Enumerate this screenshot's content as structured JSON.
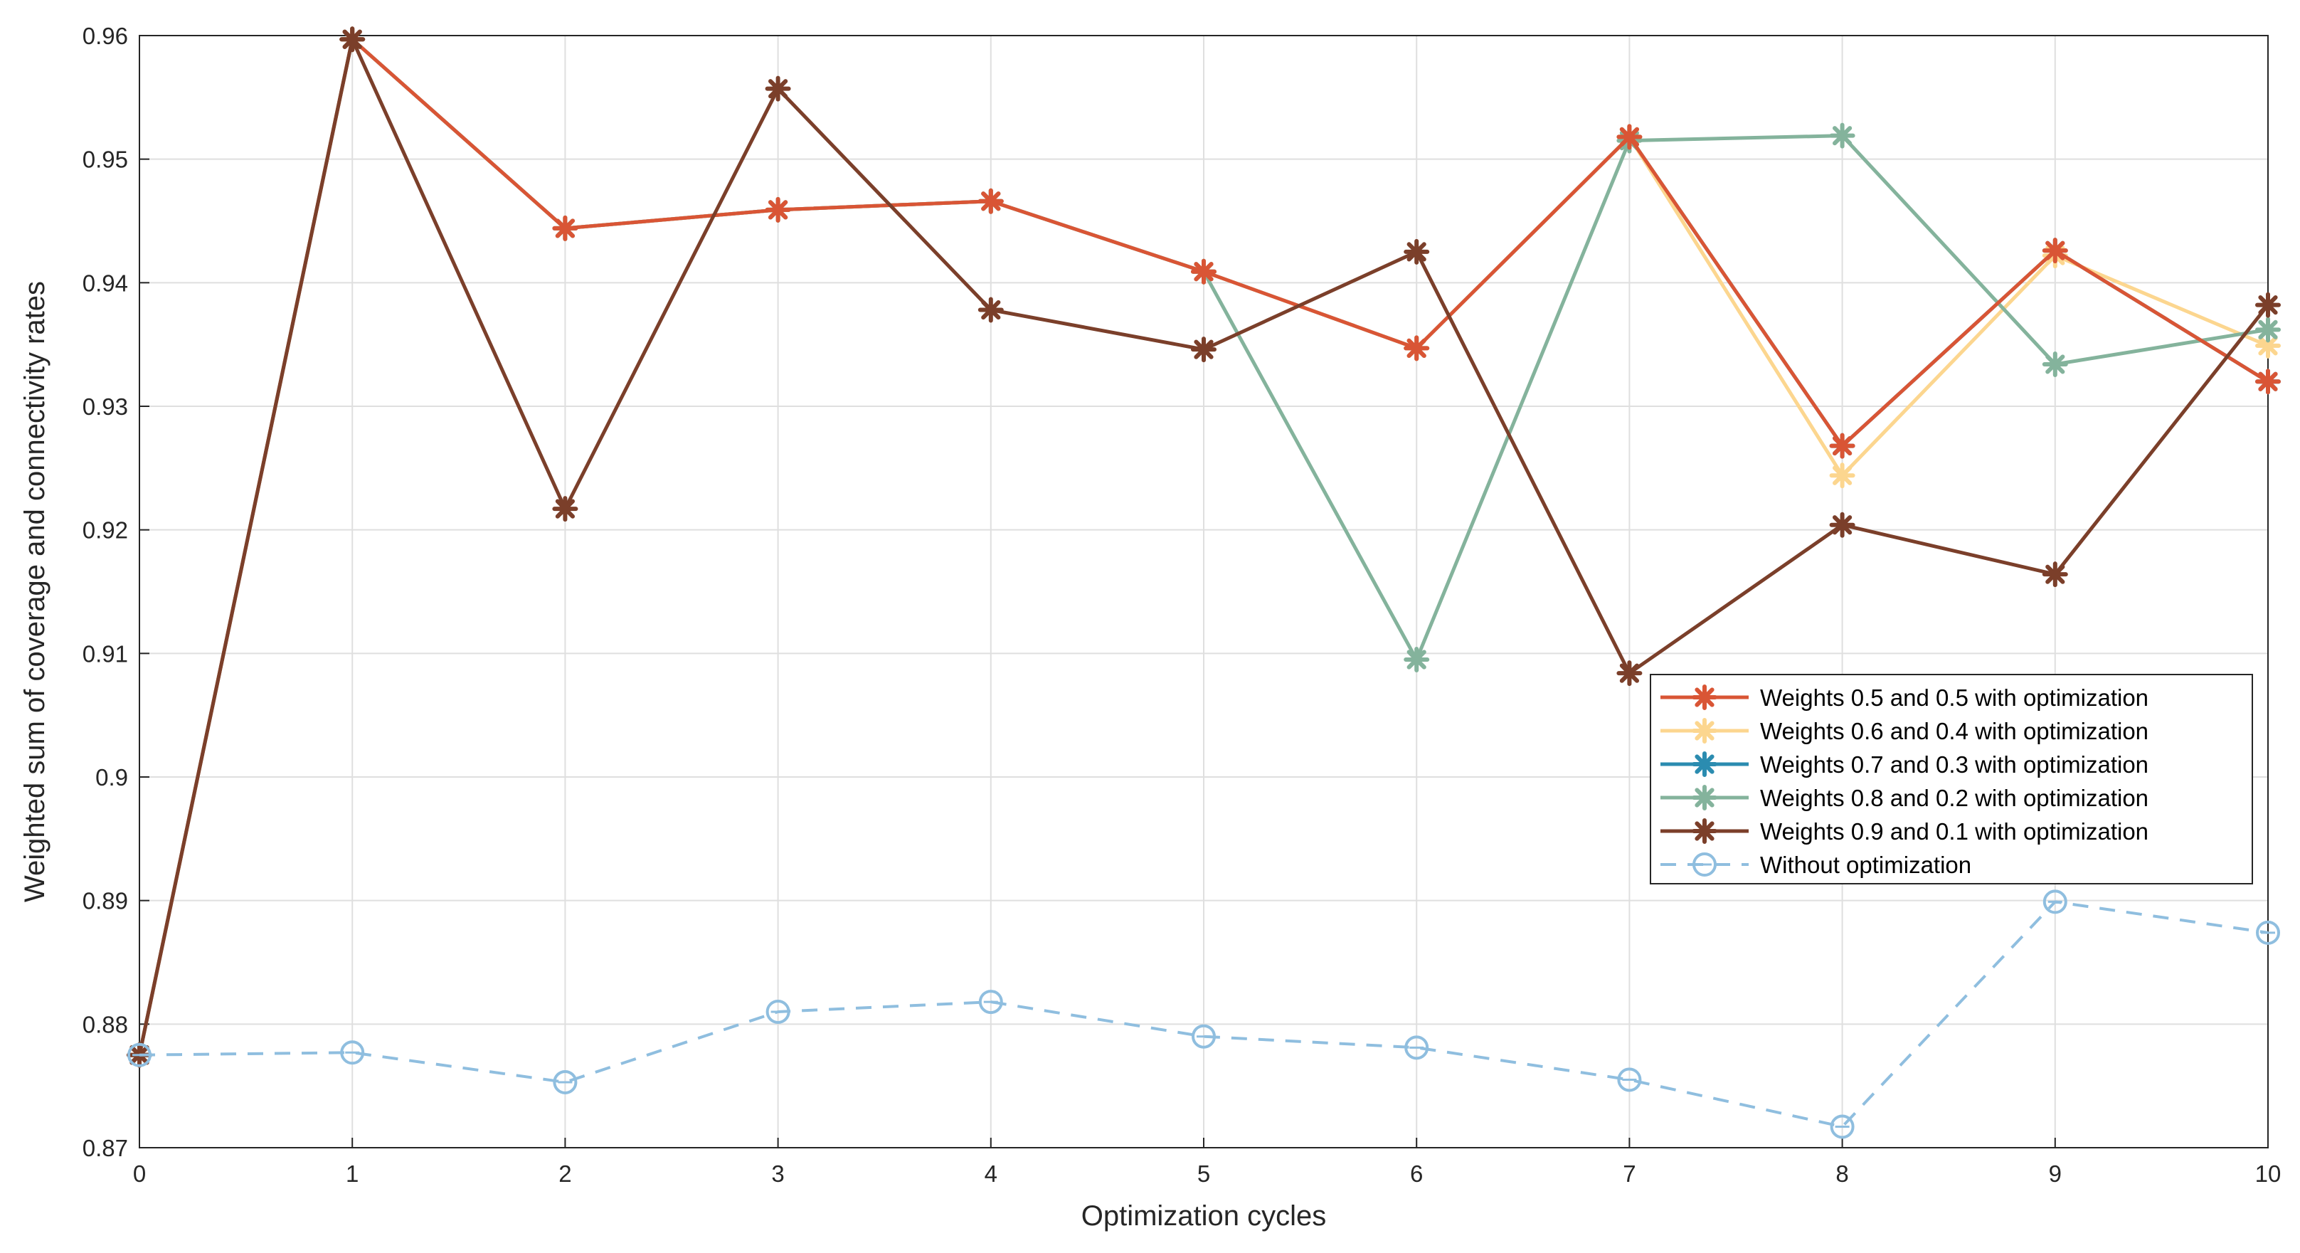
{
  "chart_data": {
    "type": "line",
    "title": "",
    "xlabel": "Optimization cycles",
    "ylabel": "Weighted sum of coverage and connectivity rates",
    "x": [
      0,
      1,
      2,
      3,
      4,
      5,
      6,
      7,
      8,
      9,
      10
    ],
    "xlim": [
      0,
      10
    ],
    "ylim": [
      0.87,
      0.96
    ],
    "xticks": [
      "0",
      "1",
      "2",
      "3",
      "4",
      "5",
      "6",
      "7",
      "8",
      "9",
      "10"
    ],
    "yticks": [
      "0.87",
      "0.88",
      "0.89",
      "0.9",
      "0.91",
      "0.92",
      "0.93",
      "0.94",
      "0.95",
      "0.96"
    ],
    "grid": true,
    "legend_position": "lower-right",
    "series": [
      {
        "name": "Weights 0.7 and 0.3 with optimization",
        "color": "#2b8cb0",
        "marker": "star",
        "dashed": false,
        "values": [
          0.8775,
          0.9597,
          0.9444,
          0.9459,
          0.9466,
          0.9409,
          0.9347,
          0.9518,
          0.9268,
          0.9426,
          0.932
        ]
      },
      {
        "name": "Weights 0.6 and 0.4 with optimization",
        "color": "#fcd68f",
        "marker": "star",
        "dashed": false,
        "values": [
          0.8775,
          0.9597,
          0.9444,
          0.9459,
          0.9466,
          0.9409,
          0.9347,
          0.9518,
          0.9244,
          0.9422,
          0.9349
        ]
      },
      {
        "name": "Weights 0.8 and 0.2 with optimization",
        "color": "#84b39c",
        "marker": "star",
        "dashed": false,
        "values": [
          0.8775,
          0.9597,
          0.9444,
          0.9459,
          0.9466,
          0.9409,
          0.9095,
          0.9515,
          0.9519,
          0.9334,
          0.9362
        ]
      },
      {
        "name": "Weights 0.5 and 0.5 with optimization",
        "color": "#d95535",
        "marker": "star",
        "dashed": false,
        "values": [
          0.8775,
          0.9597,
          0.9444,
          0.9459,
          0.9466,
          0.9409,
          0.9347,
          0.9518,
          0.9268,
          0.9426,
          0.932
        ]
      },
      {
        "name": "Weights 0.9 and 0.1 with optimization",
        "color": "#7b3f2a",
        "marker": "star",
        "dashed": false,
        "values": [
          0.8775,
          0.9597,
          0.9217,
          0.9557,
          0.9378,
          0.9346,
          0.9425,
          0.9084,
          0.9204,
          0.9164,
          0.9382
        ]
      },
      {
        "name": "Without optimization",
        "color": "#8fbedf",
        "marker": "circle",
        "dashed": true,
        "values": [
          0.8775,
          0.8777,
          0.8753,
          0.881,
          0.8818,
          0.879,
          0.8781,
          0.8755,
          0.8717,
          0.8899,
          0.8874
        ]
      }
    ],
    "legend_order": [
      "Weights 0.5 and 0.5 with optimization",
      "Weights 0.6 and 0.4 with optimization",
      "Weights 0.7 and 0.3 with optimization",
      "Weights 0.8 and 0.2 with optimization",
      "Weights 0.9 and 0.1 with optimization",
      "Without optimization"
    ]
  },
  "colors": {
    "grid": "#dfdfdf",
    "axis": "#262626",
    "background": "#ffffff"
  }
}
